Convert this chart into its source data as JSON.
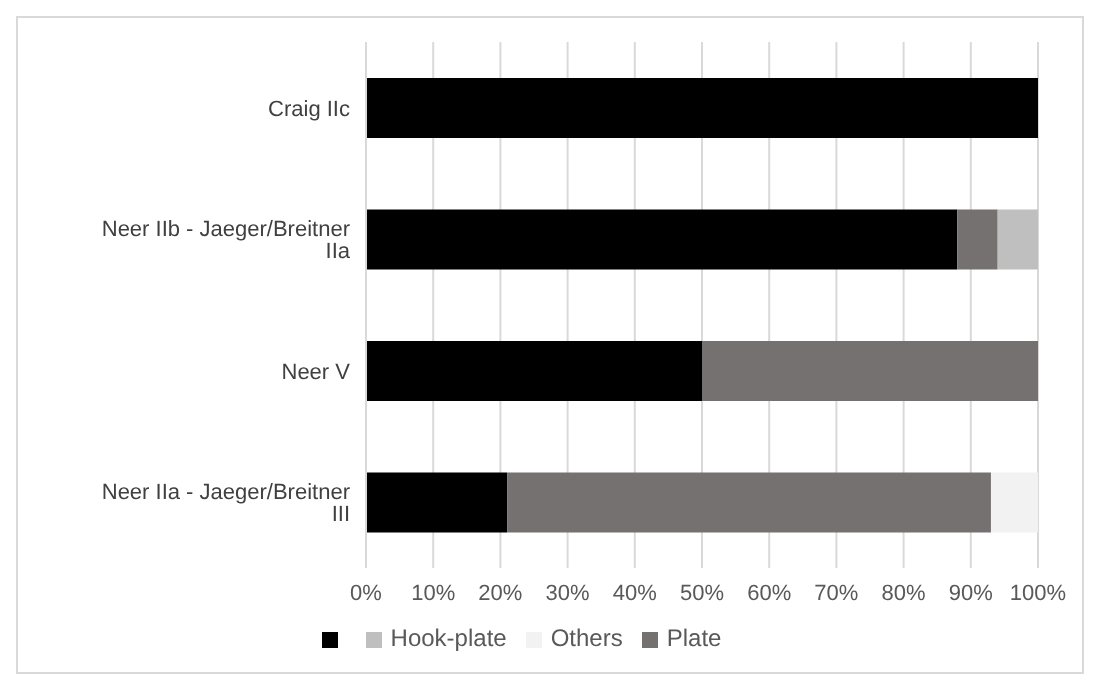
{
  "chart_data": {
    "type": "bar",
    "orientation": "horizontal",
    "stacked": true,
    "categories": [
      "Craig IIc",
      "Neer IIb - Jaeger/Breitner IIa",
      "Neer V",
      "Neer IIa - Jaeger/Breitner III"
    ],
    "series": [
      {
        "color": "#000000",
        "values": [
          100,
          88,
          50,
          21
        ]
      },
      {
        "name": "Plate",
        "color": "#767171",
        "values": [
          0,
          6,
          50,
          72
        ]
      },
      {
        "name": "Hook-plate",
        "color": "#bfbfbf",
        "values": [
          0,
          6,
          0,
          0
        ]
      },
      {
        "name": "Others",
        "color": "#f2f2f2",
        "values": [
          0,
          0,
          0,
          7
        ]
      }
    ],
    "xlim": [
      0,
      100
    ],
    "xticks": [
      {
        "value": 0,
        "label": "0%"
      },
      {
        "value": 10,
        "label": "10%"
      },
      {
        "value": 20,
        "label": "20%"
      },
      {
        "value": 30,
        "label": "30%"
      },
      {
        "value": 40,
        "label": "40%"
      },
      {
        "value": 50,
        "label": "50%"
      },
      {
        "value": 60,
        "label": "60%"
      },
      {
        "value": 70,
        "label": "70%"
      },
      {
        "value": 80,
        "label": "80%"
      },
      {
        "value": 90,
        "label": "90%"
      },
      {
        "value": 100,
        "label": "100%"
      }
    ],
    "grid": "x",
    "legend": "bottom"
  }
}
